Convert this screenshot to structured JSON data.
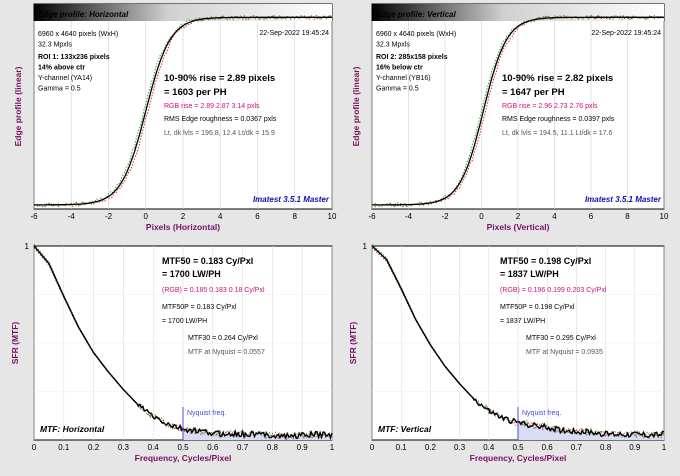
{
  "chart_data": [
    {
      "type": "line",
      "panel": "edge",
      "title": "Edge profile: Horizontal",
      "date": "22-Sep-2022 19:45:24",
      "xlabel": "Pixels (Horizontal)",
      "ylabel": "Edge profile (linear)",
      "xlim": [
        -6,
        10
      ],
      "xticks": [
        "-6",
        "-4",
        "-2",
        "0",
        "2",
        "4",
        "6",
        "8",
        "10"
      ],
      "grid": true,
      "edge_center": 0.0,
      "edge_width": 2.89,
      "info": [
        {
          "text": "6960 x 4640 pixels (WxH)",
          "style": "normal"
        },
        {
          "text": "32.3 Mpxls",
          "style": "normal"
        },
        {
          "text": "ROI 1:  133x236 pixels",
          "style": "bold"
        },
        {
          "text": "14% above ctr",
          "style": "bold"
        },
        {
          "text": "Y-channel  (YA14)",
          "style": "normal"
        },
        {
          "text": "Gamma = 0.5",
          "style": "normal"
        }
      ],
      "results": [
        {
          "text": "10-90% rise = 2.89 pixels",
          "style": "big"
        },
        {
          "text": "= 1603 per PH",
          "style": "big"
        },
        {
          "text": "RGB rise = 2.89  2.87  3.14 pxls",
          "style": "rgb"
        },
        {
          "text": "RMS Edge roughness = 0.0367 pxls",
          "style": "normal"
        },
        {
          "text": "Lt, dk lvls = 196.8, 12.4   Lt/dk = 15.9",
          "style": "gray"
        }
      ],
      "footer": "Imatest 3.5.1 Master"
    },
    {
      "type": "line",
      "panel": "edge",
      "title": "Edge profile: Vertical",
      "date": "22-Sep-2022 19:45:24",
      "xlabel": "Pixels (Vertical)",
      "ylabel": "Edge profile (linear)",
      "xlim": [
        -6,
        10
      ],
      "xticks": [
        "-6",
        "-4",
        "-2",
        "0",
        "2",
        "4",
        "6",
        "8",
        "10"
      ],
      "grid": true,
      "edge_center": 0.1,
      "edge_width": 2.82,
      "info": [
        {
          "text": "6960 x 4640 pixels (WxH)",
          "style": "normal"
        },
        {
          "text": "32.3 Mpxls",
          "style": "normal"
        },
        {
          "text": "ROI 2:  285x158 pixels",
          "style": "bold"
        },
        {
          "text": "16% below ctr",
          "style": "bold"
        },
        {
          "text": "Y-channel  (YB16)",
          "style": "normal"
        },
        {
          "text": "Gamma = 0.5",
          "style": "normal"
        }
      ],
      "results": [
        {
          "text": "10-90% rise = 2.82 pixels",
          "style": "big"
        },
        {
          "text": "= 1647 per PH",
          "style": "big"
        },
        {
          "text": "RGB rise = 2.96  2.73  2.76 pxls",
          "style": "rgb"
        },
        {
          "text": "RMS Edge roughness = 0.0397 pxls",
          "style": "normal"
        },
        {
          "text": "Lt, dk lvls = 194.5, 11.1   Lt/dk = 17.6",
          "style": "gray"
        }
      ],
      "footer": "Imatest 3.5.1 Master"
    },
    {
      "type": "line",
      "panel": "mtf",
      "title": "MTF: Horizontal",
      "xlabel": "Frequency, Cycles/Pixel",
      "ylabel": "SFR (MTF)",
      "xlim": [
        0,
        1
      ],
      "ylim": [
        0,
        1
      ],
      "xticks": [
        "0",
        "0.1",
        "0.2",
        "0.3",
        "0.4",
        "0.5",
        "0.6",
        "0.7",
        "0.8",
        "0.9",
        "1"
      ],
      "grid": true,
      "mtf50": 0.183,
      "nyquist_label": "Nyquist freq.",
      "nyquist_x": 0.5,
      "series": [
        {
          "x": [
            0,
            0.05,
            0.1,
            0.15,
            0.2,
            0.25,
            0.3,
            0.35,
            0.4,
            0.45,
            0.5,
            0.55,
            0.6,
            0.65,
            0.7,
            0.75,
            0.8,
            0.85,
            0.9,
            0.95,
            1.0
          ],
          "values": [
            1.0,
            0.91,
            0.74,
            0.58,
            0.45,
            0.35,
            0.26,
            0.18,
            0.12,
            0.08,
            0.055,
            0.045,
            0.035,
            0.03,
            0.03,
            0.03,
            0.025,
            0.02,
            0.025,
            0.03,
            0.025
          ]
        }
      ],
      "results": [
        {
          "text": "MTF50 = 0.183 Cy/Pxl",
          "style": "big"
        },
        {
          "text": "= 1700 LW/PH",
          "style": "big"
        },
        {
          "text": "(RGB) = 0.185  0.183  0.18 Cy/Pxl",
          "style": "rgb"
        },
        {
          "text": "MTF50P = 0.183 Cy/Pxl",
          "style": "normal"
        },
        {
          "text": "= 1700 LW/PH",
          "style": "normal"
        },
        {
          "text": "MTF30 = 0.264 Cy/Pxl",
          "style": "normal"
        },
        {
          "text": "MTF at Nyquist = 0.0557",
          "style": "gray"
        }
      ]
    },
    {
      "type": "line",
      "panel": "mtf",
      "title": "MTF: Vertical",
      "xlabel": "Frequency, Cycles/Pixel",
      "ylabel": "SFR (MTF)",
      "xlim": [
        0,
        1
      ],
      "ylim": [
        0,
        1
      ],
      "xticks": [
        "0",
        "0.1",
        "0.2",
        "0.3",
        "0.4",
        "0.5",
        "0.6",
        "0.7",
        "0.8",
        "0.9",
        "1"
      ],
      "grid": true,
      "mtf50": 0.198,
      "nyquist_label": "Nyquist freq.",
      "nyquist_x": 0.5,
      "series": [
        {
          "x": [
            0,
            0.05,
            0.1,
            0.15,
            0.2,
            0.25,
            0.3,
            0.35,
            0.4,
            0.45,
            0.5,
            0.55,
            0.6,
            0.65,
            0.7,
            0.75,
            0.8,
            0.85,
            0.9,
            0.95,
            1.0
          ],
          "values": [
            1.0,
            0.93,
            0.78,
            0.62,
            0.49,
            0.38,
            0.29,
            0.21,
            0.15,
            0.11,
            0.09,
            0.075,
            0.065,
            0.05,
            0.045,
            0.04,
            0.03,
            0.03,
            0.03,
            0.025,
            0.03
          ]
        }
      ],
      "results": [
        {
          "text": "MTF50 = 0.198 Cy/Pxl",
          "style": "big"
        },
        {
          "text": "= 1837 LW/PH",
          "style": "big"
        },
        {
          "text": "(RGB) = 0.196  0.199  0.203 Cy/Pxl",
          "style": "rgb"
        },
        {
          "text": "MTF50P = 0.198 Cy/Pxl",
          "style": "normal"
        },
        {
          "text": "= 1837 LW/PH",
          "style": "normal"
        },
        {
          "text": "MTF30 = 0.295 Cy/Pxl",
          "style": "normal"
        },
        {
          "text": "MTF at Nyquist = 0.0935",
          "style": "gray"
        }
      ]
    }
  ],
  "colors": {
    "background": "#e6e6e6",
    "plot_bg": "#ffffff",
    "curve": "#000000",
    "rgb_text": "#c8127a",
    "footer_text": "#1010b0",
    "axis_label": "#7a1060",
    "nyquist": "#4b48d8",
    "nyquist_fill": "#d8dcf4",
    "red_dots": "#d02020",
    "green_dots": "#20a020",
    "gray_text": "#555555"
  }
}
